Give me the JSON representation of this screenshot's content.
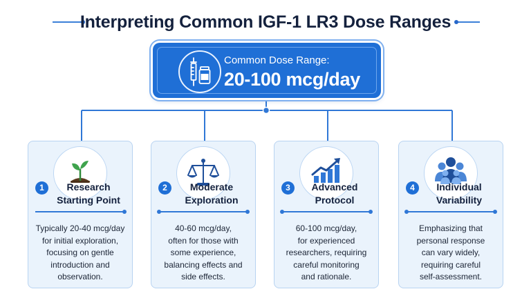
{
  "title": "Interpreting Common IGF-1 LR3 Dose Ranges",
  "hero": {
    "label": "Common Dose Range:",
    "value": "20-100 mcg/day",
    "icon": "syringe-vial-icon"
  },
  "colors": {
    "accent": "#1f6fd6",
    "card_bg": "#eaf3fc",
    "card_border": "#b8d3f1",
    "title": "#14213d"
  },
  "cards": [
    {
      "number": "1",
      "icon": "seedling-icon",
      "title_lines": [
        "Research",
        "Starting Point"
      ],
      "body_lines": [
        "Typically 20-40 mcg/day",
        "for initial exploration,",
        "focusing on gentle",
        "introduction and",
        "observation."
      ]
    },
    {
      "number": "2",
      "icon": "balance-scale-icon",
      "title_lines": [
        "Moderate",
        "Exploration"
      ],
      "body_lines": [
        "40-60 mcg/day,",
        "often for those with",
        "some experience,",
        "balancing effects and",
        "side effects."
      ]
    },
    {
      "number": "3",
      "icon": "growth-chart-icon",
      "title_lines": [
        "Advanced",
        "Protocol"
      ],
      "body_lines": [
        "60-100 mcg/day,",
        "for experienced",
        "researchers, requiring",
        "careful monitoring",
        "and rationale."
      ]
    },
    {
      "number": "4",
      "icon": "people-group-icon",
      "title_lines": [
        "Individual",
        "Variability"
      ],
      "body_lines": [
        "Emphasizing that",
        "personal response",
        "can vary widely,",
        "requiring careful",
        "self-assessment."
      ]
    }
  ]
}
